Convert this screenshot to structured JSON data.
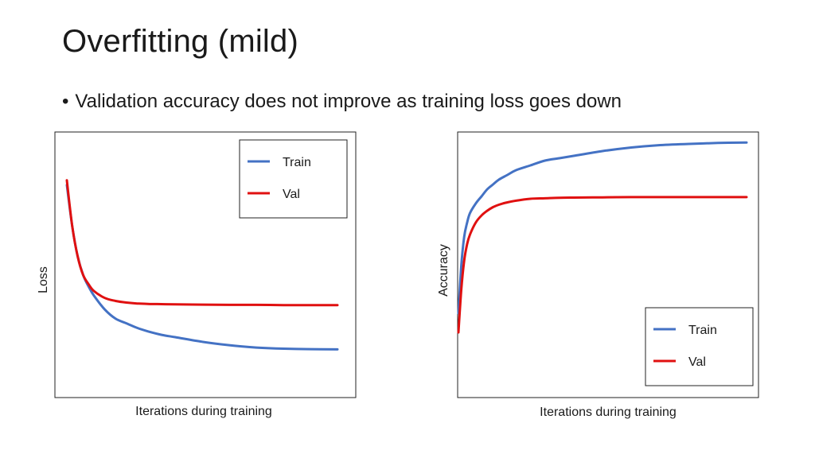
{
  "slide": {
    "title": "Overfitting (mild)",
    "bullet": "Validation accuracy does not improve as training loss goes down"
  },
  "colors": {
    "train": "#4472c4",
    "val": "#e01010",
    "frame": "#222222"
  },
  "chart_data": [
    {
      "type": "line",
      "title": "",
      "xlabel": "Iterations during training",
      "ylabel": "Loss",
      "xlim": [
        0,
        100
      ],
      "ylim": [
        0,
        100
      ],
      "grid": false,
      "legend_placement": "top-right",
      "series": [
        {
          "name": "Train",
          "color_key": "train",
          "x": [
            0,
            2,
            4,
            6,
            8,
            10,
            14,
            18,
            22,
            26,
            30,
            35,
            40,
            50,
            60,
            70,
            80,
            90,
            100
          ],
          "y": [
            86,
            68,
            55,
            47,
            42,
            38,
            32,
            28,
            26,
            24,
            22.5,
            21,
            20,
            18,
            16.5,
            15.5,
            15,
            14.8,
            14.7
          ]
        },
        {
          "name": "Val",
          "color_key": "val",
          "x": [
            0,
            2,
            4,
            6,
            8,
            10,
            14,
            18,
            22,
            26,
            30,
            35,
            40,
            50,
            60,
            70,
            80,
            90,
            100
          ],
          "y": [
            88,
            68,
            55,
            47,
            43,
            40,
            37,
            35.7,
            35,
            34.6,
            34.4,
            34.3,
            34.2,
            34.1,
            34,
            34,
            33.9,
            33.9,
            33.9
          ]
        }
      ]
    },
    {
      "type": "line",
      "title": "",
      "xlabel": "Iterations during training",
      "ylabel": "Accuracy",
      "xlim": [
        0,
        100
      ],
      "ylim": [
        0,
        100
      ],
      "grid": false,
      "legend_placement": "bottom-right",
      "series": [
        {
          "name": "Train",
          "color_key": "train",
          "x": [
            0,
            1,
            2,
            3,
            4,
            6,
            8,
            10,
            12,
            14,
            17,
            20,
            25,
            30,
            35,
            40,
            50,
            60,
            70,
            80,
            90,
            100
          ],
          "y": [
            22,
            42,
            54,
            60,
            64,
            68,
            71,
            74,
            76,
            78,
            80,
            82,
            84,
            86,
            87,
            88,
            90,
            91.5,
            92.5,
            93,
            93.4,
            93.6
          ]
        },
        {
          "name": "Val",
          "color_key": "val",
          "x": [
            0,
            1,
            2,
            3,
            4,
            6,
            8,
            10,
            12,
            14,
            17,
            20,
            25,
            30,
            35,
            40,
            50,
            60,
            70,
            80,
            90,
            100
          ],
          "y": [
            14,
            32,
            44,
            51,
            55,
            60,
            63,
            65,
            66.5,
            67.5,
            68.5,
            69.2,
            70,
            70.2,
            70.4,
            70.5,
            70.6,
            70.7,
            70.7,
            70.7,
            70.7,
            70.7
          ]
        }
      ]
    }
  ]
}
